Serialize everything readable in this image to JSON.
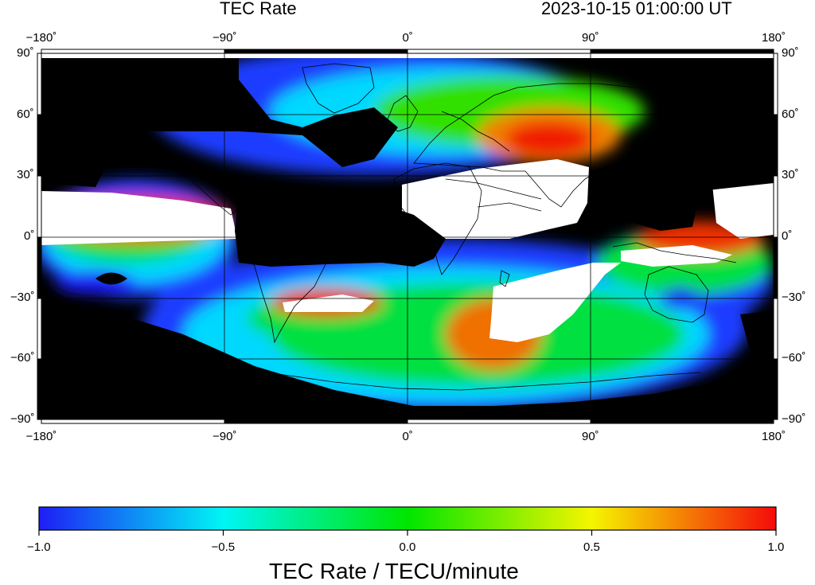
{
  "header": {
    "title": "TEC Rate",
    "timestamp": "2023-10-15  01:00:00 UT"
  },
  "map": {
    "x_ticks": [
      {
        "value": -180,
        "label": "−180˚"
      },
      {
        "value": -90,
        "label": "−90˚"
      },
      {
        "value": 0,
        "label": "0˚"
      },
      {
        "value": 90,
        "label": "90˚"
      },
      {
        "value": 180,
        "label": "180˚"
      }
    ],
    "y_ticks": [
      {
        "value": 90,
        "label": "90˚"
      },
      {
        "value": 60,
        "label": "60˚"
      },
      {
        "value": 30,
        "label": "30˚"
      },
      {
        "value": 0,
        "label": "0˚"
      },
      {
        "value": -30,
        "label": "−30˚"
      },
      {
        "value": -60,
        "label": "−60˚"
      },
      {
        "value": -90,
        "label": "−90˚"
      }
    ]
  },
  "colorbar": {
    "min": -1.0,
    "max": 1.0,
    "ticks": [
      {
        "value": -1.0,
        "label": "−1.0"
      },
      {
        "value": -0.5,
        "label": "−0.5"
      },
      {
        "value": 0.0,
        "label": "0.0"
      },
      {
        "value": 0.5,
        "label": "0.5"
      },
      {
        "value": 1.0,
        "label": "1.0"
      }
    ],
    "colors": [
      "#1e1ef5",
      "#00f5f5",
      "#00e600",
      "#f5f500",
      "#f50a0a"
    ],
    "label": "TEC Rate / TECU/minute"
  }
}
